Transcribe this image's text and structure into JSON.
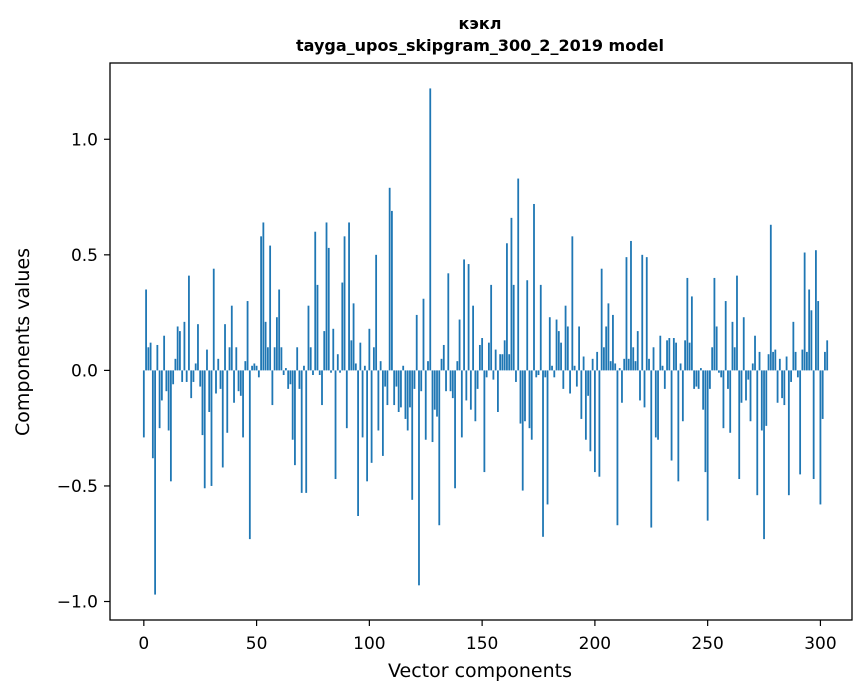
{
  "chart_data": {
    "type": "bar",
    "title_line1": "кэкл",
    "title_line2": "tayga_upos_skipgram_300_2_2019 model",
    "xlabel": "Vector components",
    "ylabel": "Components values",
    "xlim": [
      -15,
      314
    ],
    "ylim": [
      -1.08,
      1.33
    ],
    "xticks": [
      0,
      50,
      100,
      150,
      200,
      250,
      300
    ],
    "xtick_labels": [
      "0",
      "50",
      "100",
      "150",
      "200",
      "250",
      "300"
    ],
    "yticks": [
      -1.0,
      -0.5,
      0.0,
      0.5,
      1.0
    ],
    "ytick_labels": [
      "−1.0",
      "−0.5",
      "0.0",
      "0.5",
      "1.0"
    ],
    "bar_color": "#1f77b4",
    "values": [
      -0.29,
      0.35,
      0.1,
      0.12,
      -0.38,
      -0.97,
      0.11,
      -0.25,
      -0.13,
      0.15,
      -0.09,
      -0.26,
      -0.48,
      -0.06,
      0.05,
      0.19,
      0.17,
      -0.05,
      0.21,
      -0.05,
      0.41,
      -0.12,
      -0.05,
      0.03,
      0.2,
      -0.07,
      -0.28,
      -0.51,
      0.09,
      -0.18,
      -0.5,
      0.44,
      -0.1,
      0.05,
      -0.08,
      -0.42,
      0.2,
      -0.27,
      0.1,
      0.28,
      -0.14,
      0.1,
      -0.09,
      -0.11,
      -0.29,
      0.04,
      0.3,
      -0.73,
      0.02,
      0.03,
      0.02,
      -0.03,
      0.58,
      0.64,
      0.21,
      0.1,
      0.54,
      -0.15,
      0.1,
      0.23,
      0.35,
      0.1,
      -0.02,
      0.01,
      -0.08,
      -0.06,
      -0.3,
      -0.41,
      0.1,
      -0.08,
      -0.53,
      0.02,
      -0.53,
      0.28,
      0.1,
      -0.02,
      0.6,
      0.37,
      -0.02,
      -0.15,
      0.17,
      0.64,
      0.53,
      -0.01,
      0.18,
      -0.47,
      0.07,
      -0.01,
      0.38,
      0.58,
      -0.25,
      0.64,
      0.13,
      0.29,
      0.03,
      -0.63,
      0.12,
      -0.29,
      0.02,
      -0.48,
      0.18,
      -0.4,
      0.1,
      0.5,
      -0.26,
      0.04,
      -0.37,
      -0.07,
      -0.15,
      0.79,
      0.69,
      -0.15,
      -0.07,
      -0.18,
      -0.16,
      0.02,
      -0.21,
      -0.26,
      -0.16,
      -0.56,
      -0.08,
      0.24,
      -0.93,
      -0.09,
      0.31,
      -0.3,
      0.04,
      1.22,
      -0.31,
      -0.17,
      -0.2,
      -0.67,
      0.05,
      0.11,
      -0.09,
      0.42,
      -0.09,
      -0.12,
      -0.51,
      0.04,
      0.22,
      -0.29,
      0.48,
      -0.13,
      0.46,
      -0.17,
      0.28,
      -0.22,
      -0.08,
      0.11,
      0.14,
      -0.44,
      -0.03,
      0.12,
      0.37,
      -0.04,
      0.09,
      -0.18,
      0.07,
      0.07,
      0.13,
      0.55,
      0.07,
      0.66,
      0.37,
      -0.05,
      0.83,
      -0.23,
      -0.52,
      -0.22,
      0.39,
      -0.25,
      -0.3,
      0.72,
      -0.03,
      -0.02,
      0.37,
      -0.72,
      -0.03,
      -0.58,
      0.23,
      0.02,
      -0.03,
      0.22,
      0.17,
      0.12,
      -0.08,
      0.28,
      0.19,
      -0.1,
      0.58,
      0.02,
      -0.07,
      0.19,
      -0.21,
      0.06,
      -0.3,
      -0.11,
      -0.35,
      0.05,
      -0.44,
      0.08,
      -0.46,
      0.44,
      0.1,
      0.19,
      0.29,
      0.04,
      0.24,
      0.03,
      -0.67,
      0.01,
      -0.14,
      0.05,
      0.49,
      0.05,
      0.56,
      0.1,
      0.04,
      0.17,
      -0.13,
      0.5,
      -0.16,
      0.49,
      0.05,
      -0.68,
      0.1,
      -0.29,
      -0.3,
      0.15,
      0.02,
      -0.08,
      0.13,
      0.14,
      -0.39,
      0.14,
      0.12,
      -0.48,
      0.03,
      -0.22,
      0.13,
      0.4,
      0.12,
      0.32,
      -0.08,
      -0.07,
      -0.08,
      0.01,
      -0.17,
      -0.44,
      -0.65,
      -0.08,
      0.1,
      0.4,
      0.19,
      -0.01,
      -0.03,
      -0.25,
      0.3,
      -0.08,
      -0.27,
      0.21,
      0.1,
      0.41,
      -0.47,
      -0.14,
      0.23,
      -0.13,
      -0.04,
      -0.22,
      0.03,
      0.15,
      -0.54,
      0.08,
      -0.26,
      -0.73,
      -0.24,
      0.07,
      0.63,
      0.08,
      0.09,
      -0.14,
      0.05,
      -0.12,
      -0.15,
      0.06,
      -0.54,
      -0.05,
      0.21,
      0.08,
      -0.03,
      -0.45,
      0.09,
      0.51,
      0.08,
      0.35,
      0.26,
      -0.47,
      0.52,
      0.3,
      -0.58,
      -0.21,
      0.08,
      0.13
    ]
  }
}
